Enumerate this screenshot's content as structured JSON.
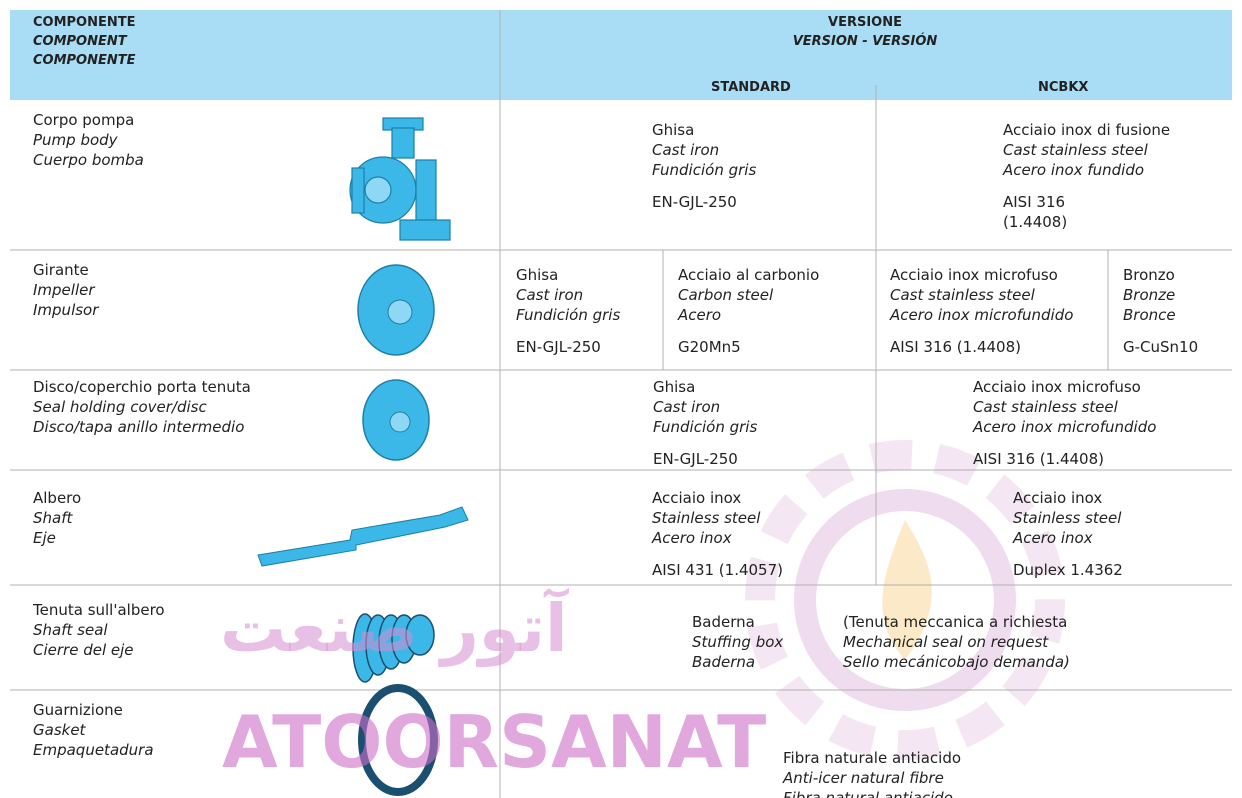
{
  "header": {
    "component": [
      "COMPONENTE",
      "COMPONENT",
      "COMPONENTE"
    ],
    "version": [
      "VERSIONE",
      "VERSION - VERSIÓN"
    ],
    "standard": "STANDARD",
    "ncbkx": "NCBKX"
  },
  "rows": [
    {
      "component": [
        "Corpo pompa",
        "Pump body",
        "Cuerpo bomba"
      ],
      "cells": [
        [
          "Ghisa",
          "Cast iron",
          "Fundición gris",
          "EN-GJL-250"
        ],
        [
          "Acciaio inox di fusione",
          "Cast stainless steel",
          "Acero inox fundido",
          "AISI 316",
          "(1.4408)"
        ]
      ]
    },
    {
      "component": [
        "Girante",
        "Impeller",
        "Impulsor"
      ],
      "cells": [
        [
          "Ghisa",
          "Cast iron",
          "Fundición gris",
          "EN-GJL-250"
        ],
        [
          "Acciaio al carbonio",
          "Carbon steel",
          "Acero",
          "G20Mn5"
        ],
        [
          "Acciaio inox microfuso",
          "Cast stainless steel",
          "Acero inox microfundido",
          "AISI 316 (1.4408)"
        ],
        [
          "Bronzo",
          "Bronze",
          "Bronce",
          "G-CuSn10"
        ]
      ]
    },
    {
      "component": [
        "Disco/coperchio porta tenuta",
        "Seal holding cover/disc",
        "Disco/tapa anillo intermedio"
      ],
      "cells": [
        [
          "Ghisa",
          "Cast iron",
          "Fundición gris",
          "EN-GJL-250"
        ],
        [
          "Acciaio inox microfuso",
          "Cast stainless steel",
          "Acero inox microfundido",
          "AISI 316 (1.4408)"
        ]
      ]
    },
    {
      "component": [
        "Albero",
        "Shaft",
        "Eje"
      ],
      "cells": [
        [
          "Acciaio inox",
          "Stainless steel",
          "Acero inox",
          "AISI 431 (1.4057)"
        ],
        [
          "Acciaio inox",
          "Stainless steel",
          "Acero inox",
          "Duplex 1.4362"
        ]
      ]
    },
    {
      "component": [
        "Tenuta sull'albero",
        "Shaft seal",
        "Cierre del eje"
      ],
      "cells": [
        [
          "Baderna",
          "Stuffing box",
          "Baderna"
        ],
        [
          "(Tenuta meccanica a richiesta",
          "Mechanical seal on request",
          "Sello mecánicobajo demanda)"
        ]
      ]
    },
    {
      "component": [
        "Guarnizione",
        "Gasket",
        "Empaquetadura"
      ],
      "cells": [
        [
          "Fibra naturale antiacido",
          "Anti-icer natural fibre",
          "Fibra natural antiacido"
        ]
      ]
    }
  ],
  "watermark": [
    "آتور صنعت",
    "ATOORSANAT"
  ]
}
